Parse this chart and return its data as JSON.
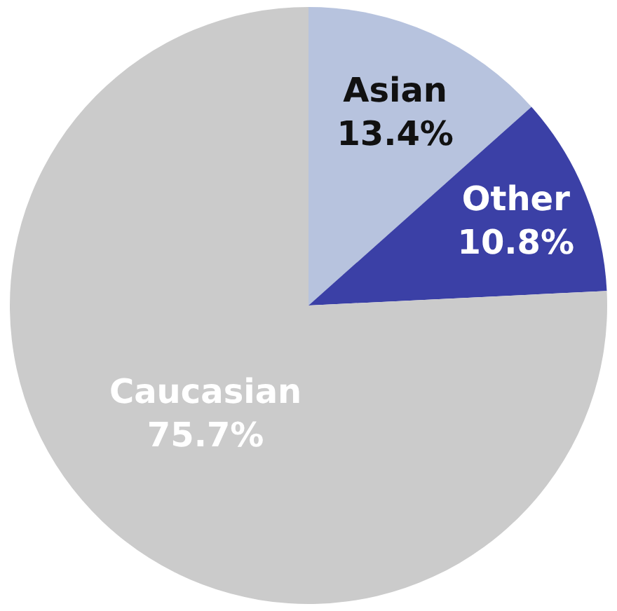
{
  "chart_data": {
    "type": "pie",
    "categories": [
      "Asian",
      "Other",
      "Caucasian"
    ],
    "values": [
      13.4,
      10.8,
      75.7
    ],
    "value_labels": [
      "13.4%",
      "10.8%",
      "75.7%"
    ],
    "colors": [
      "#b7c3de",
      "#3b40a6",
      "#cbcbcb"
    ],
    "legend": false
  }
}
